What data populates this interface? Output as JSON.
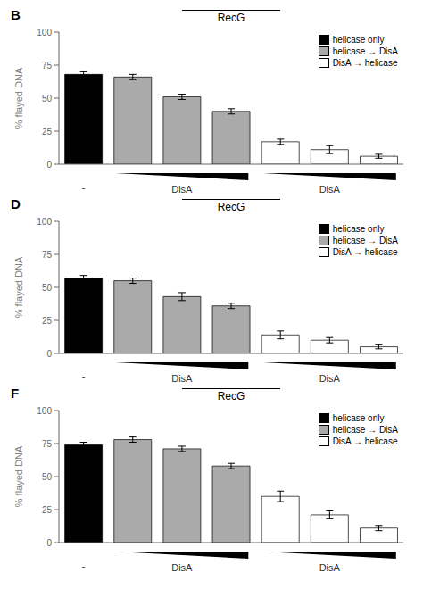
{
  "chart_data": [
    {
      "type": "bar",
      "label": "B",
      "title": "RecG",
      "y_label": "% flayed DNA",
      "categories": [
        null,
        null,
        null,
        null,
        null,
        null,
        null
      ],
      "series": [
        {
          "name": "helicase only",
          "color": "#000000",
          "values": [
            68,
            null,
            null,
            null,
            null,
            null,
            null
          ],
          "errors": [
            2,
            null,
            null,
            null,
            null,
            null,
            null
          ]
        },
        {
          "name": "helicase → DisA",
          "color": "#aaaaaa",
          "values": [
            null,
            66,
            51,
            40,
            null,
            null,
            null
          ],
          "errors": [
            null,
            2,
            2,
            2,
            null,
            null,
            null
          ]
        },
        {
          "name": "DisA → helicase",
          "color": "#ffffff",
          "values": [
            null,
            null,
            null,
            null,
            17,
            11,
            6
          ],
          "errors": [
            null,
            null,
            null,
            null,
            2,
            3,
            1.5
          ]
        }
      ],
      "ylim": [
        0,
        100
      ],
      "yticks": [
        0,
        25,
        50,
        75,
        100
      ],
      "grid": false,
      "legend": "upper right",
      "tick_labels": "y",
      "annotations": [
        "-",
        "DisA",
        "DisA"
      ]
    },
    {
      "type": "bar",
      "label": "D",
      "title": "RecG",
      "y_label": "% flayed DNA",
      "categories": [
        null,
        null,
        null,
        null,
        null,
        null,
        null
      ],
      "series": [
        {
          "name": "helicase only",
          "color": "#000000",
          "values": [
            57,
            null,
            null,
            null,
            null,
            null,
            null
          ],
          "errors": [
            2,
            null,
            null,
            null,
            null,
            null,
            null
          ]
        },
        {
          "name": "helicase → DisA",
          "color": "#aaaaaa",
          "values": [
            null,
            55,
            43,
            36,
            null,
            null,
            null
          ],
          "errors": [
            null,
            2,
            3,
            2,
            null,
            null,
            null
          ]
        },
        {
          "name": "DisA → helicase",
          "color": "#ffffff",
          "values": [
            null,
            null,
            null,
            null,
            14,
            10,
            5
          ],
          "errors": [
            null,
            null,
            null,
            null,
            3,
            2,
            1.5
          ]
        }
      ],
      "ylim": [
        0,
        100
      ],
      "yticks": [
        0,
        25,
        50,
        75,
        100
      ],
      "grid": false,
      "legend": "upper right",
      "tick_labels": "y",
      "annotations": [
        "-",
        "DisA",
        "DisA"
      ]
    },
    {
      "type": "bar",
      "label": "F",
      "title": "RecG",
      "y_label": "% flayed DNA",
      "categories": [
        null,
        null,
        null,
        null,
        null,
        null,
        null
      ],
      "series": [
        {
          "name": "helicase only",
          "color": "#000000",
          "values": [
            74,
            null,
            null,
            null,
            null,
            null,
            null
          ],
          "errors": [
            2,
            null,
            null,
            null,
            null,
            null,
            null
          ]
        },
        {
          "name": "helicase → DisA",
          "color": "#aaaaaa",
          "values": [
            null,
            78,
            71,
            58,
            null,
            null,
            null
          ],
          "errors": [
            null,
            2,
            2,
            2,
            null,
            null,
            null
          ]
        },
        {
          "name": "DisA → helicase",
          "color": "#ffffff",
          "values": [
            null,
            null,
            null,
            null,
            35,
            21,
            11
          ],
          "errors": [
            null,
            null,
            null,
            null,
            4,
            3,
            2
          ]
        }
      ],
      "ylim": [
        0,
        100
      ],
      "yticks": [
        0,
        25,
        50,
        75,
        100
      ],
      "grid": false,
      "legend": "upper right",
      "tick_labels": "y",
      "annotations": [
        "-",
        "DisA",
        "DisA"
      ]
    }
  ]
}
